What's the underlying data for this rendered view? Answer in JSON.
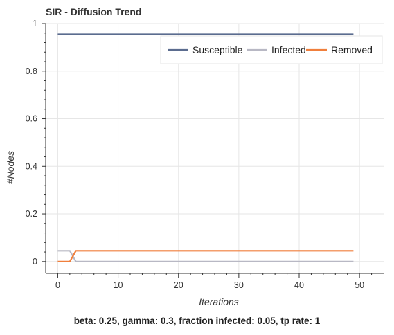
{
  "chart_data": {
    "type": "line",
    "title": "SIR - Diffusion Trend",
    "xlabel": "Iterations",
    "ylabel": "#Nodes",
    "xlim": [
      -2,
      54
    ],
    "ylim": [
      -0.05,
      1
    ],
    "xticks": [
      0,
      10,
      20,
      30,
      40,
      50
    ],
    "yticks": [
      0,
      0.2,
      0.4,
      0.6,
      0.8,
      1
    ],
    "ytick_labels": [
      "0",
      "0.2",
      "0.4",
      "0.6",
      "0.8",
      "1"
    ],
    "grid": true,
    "legend_position": "top-right",
    "series": [
      {
        "name": "Susceptible",
        "color": "#5b6c8f",
        "points": [
          [
            0,
            0.955
          ],
          [
            49,
            0.955
          ]
        ]
      },
      {
        "name": "Infected",
        "color": "#b8b8c4",
        "points": [
          [
            0,
            0.045
          ],
          [
            2,
            0.045
          ],
          [
            3,
            0.0
          ],
          [
            49,
            0.0
          ]
        ]
      },
      {
        "name": "Removed",
        "color": "#f07f3c",
        "points": [
          [
            0,
            0.0
          ],
          [
            2,
            0.0
          ],
          [
            3,
            0.045
          ],
          [
            49,
            0.045
          ]
        ]
      }
    ]
  },
  "caption": "beta: 0.25, gamma: 0.3, fraction infected: 0.05, tp rate: 1"
}
